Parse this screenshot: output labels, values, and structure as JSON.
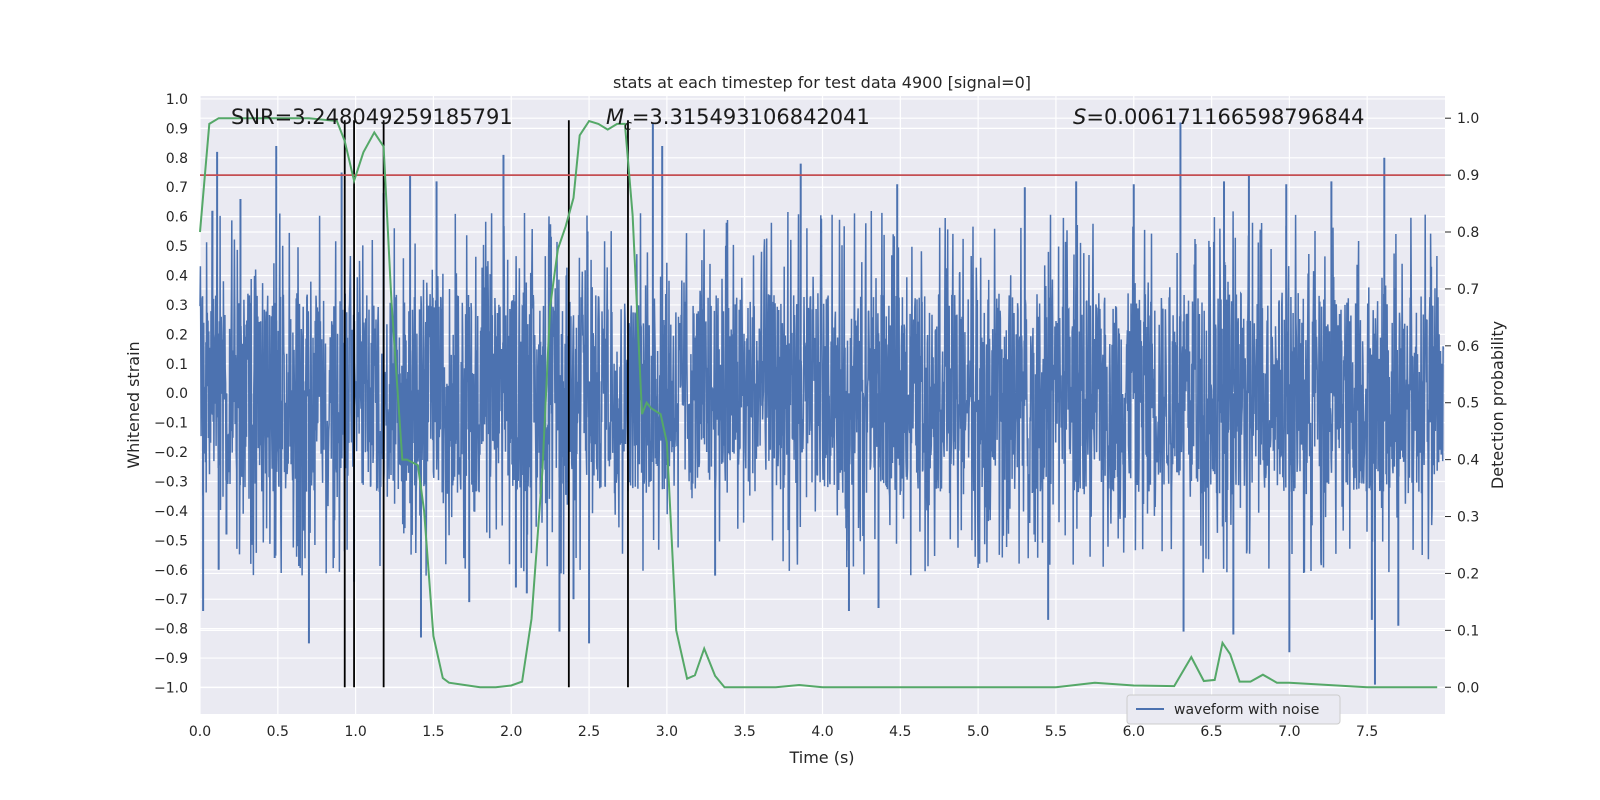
{
  "chart_data": {
    "type": "line",
    "title": "stats at each timestep for test data 4900 [signal=0]",
    "xlabel": "Time (s)",
    "ylabel": "Whitened strain",
    "y2label": "Detection probability",
    "xlim": [
      0,
      8
    ],
    "ylim": [
      -1.09,
      1.01
    ],
    "y2lim": [
      -0.047,
      1.039
    ],
    "grid": true,
    "xticks": [
      "0.0",
      "0.5",
      "1.0",
      "1.5",
      "2.0",
      "2.5",
      "3.0",
      "3.5",
      "4.0",
      "4.5",
      "5.0",
      "5.5",
      "6.0",
      "6.5",
      "7.0",
      "7.5"
    ],
    "yticks": [
      "1.0",
      "0.9",
      "0.8",
      "0.7",
      "0.6",
      "0.5",
      "0.4",
      "0.3",
      "0.2",
      "0.1",
      "0.0",
      "-0.1",
      "-0.2",
      "-0.3",
      "-0.4",
      "-0.5",
      "-0.6",
      "-0.7",
      "-0.8",
      "-0.9",
      "-1.0"
    ],
    "y2ticks": [
      "1.0",
      "0.9",
      "0.8",
      "0.7",
      "0.6",
      "0.5",
      "0.4",
      "0.3",
      "0.2",
      "0.1",
      "0.0"
    ],
    "annotations": {
      "snr": "SNR=3.248049259185791",
      "mc_symbol": "M",
      "mc_sub": "c",
      "mc_value": "=3.315493106842041",
      "s_symbol": "S",
      "s_value": "=0.006171166598796844"
    },
    "legend": {
      "placement": "lower-right",
      "entries": [
        "waveform with noise"
      ]
    },
    "threshold": {
      "axis": "right",
      "value": 0.9,
      "color": "#c44e52"
    },
    "vlines": [
      0.93,
      0.99,
      1.18,
      2.37,
      2.75
    ],
    "series": [
      {
        "name": "waveform with noise",
        "axis": "left",
        "color": "#4c72b0",
        "kind": "noise",
        "core_amplitude": 0.34,
        "spikes": [
          {
            "x": 0.02,
            "y": -0.74
          },
          {
            "x": 0.08,
            "y": 0.62
          },
          {
            "x": 0.11,
            "y": 0.82
          },
          {
            "x": 0.12,
            "y": -0.6
          },
          {
            "x": 0.17,
            "y": -0.48
          },
          {
            "x": 0.26,
            "y": 0.66
          },
          {
            "x": 0.33,
            "y": -0.47
          },
          {
            "x": 0.48,
            "y": -0.56
          },
          {
            "x": 0.49,
            "y": 0.84
          },
          {
            "x": 0.63,
            "y": -0.52
          },
          {
            "x": 0.7,
            "y": -0.85
          },
          {
            "x": 0.86,
            "y": -0.56
          },
          {
            "x": 0.91,
            "y": 0.75
          },
          {
            "x": 0.99,
            "y": -0.64
          },
          {
            "x": 1.18,
            "y": 0.68
          },
          {
            "x": 1.35,
            "y": 0.74
          },
          {
            "x": 1.42,
            "y": -0.83
          },
          {
            "x": 1.52,
            "y": 0.72
          },
          {
            "x": 1.73,
            "y": -0.71
          },
          {
            "x": 1.95,
            "y": 0.81
          },
          {
            "x": 2.03,
            "y": -0.66
          },
          {
            "x": 2.1,
            "y": -0.68
          },
          {
            "x": 2.31,
            "y": -0.81
          },
          {
            "x": 2.4,
            "y": -0.7
          },
          {
            "x": 2.5,
            "y": -0.85
          },
          {
            "x": 2.91,
            "y": 0.92
          },
          {
            "x": 2.97,
            "y": 0.84
          },
          {
            "x": 3.31,
            "y": -0.62
          },
          {
            "x": 3.86,
            "y": 0.78
          },
          {
            "x": 4.17,
            "y": -0.74
          },
          {
            "x": 4.36,
            "y": -0.73
          },
          {
            "x": 4.48,
            "y": 0.71
          },
          {
            "x": 5.3,
            "y": 0.7
          },
          {
            "x": 5.45,
            "y": -0.77
          },
          {
            "x": 5.63,
            "y": 0.72
          },
          {
            "x": 6.0,
            "y": 0.71
          },
          {
            "x": 6.3,
            "y": 0.92
          },
          {
            "x": 6.32,
            "y": -0.81
          },
          {
            "x": 6.58,
            "y": 0.72
          },
          {
            "x": 6.64,
            "y": -0.82
          },
          {
            "x": 6.74,
            "y": 0.74
          },
          {
            "x": 6.98,
            "y": 0.71
          },
          {
            "x": 7.0,
            "y": -0.88
          },
          {
            "x": 7.27,
            "y": 0.72
          },
          {
            "x": 7.53,
            "y": -0.77
          },
          {
            "x": 7.55,
            "y": -0.99
          },
          {
            "x": 7.61,
            "y": 0.8
          },
          {
            "x": 7.7,
            "y": -0.79
          }
        ]
      },
      {
        "name": "",
        "axis": "right",
        "color": "#55a868",
        "kind": "line",
        "x": [
          0.0,
          0.06,
          0.12,
          0.5,
          0.7,
          0.88,
          0.93,
          0.99,
          1.05,
          1.12,
          1.18,
          1.23,
          1.27,
          1.3,
          1.33,
          1.4,
          1.44,
          1.5,
          1.56,
          1.6,
          1.7,
          1.8,
          1.9,
          2.0,
          2.07,
          2.13,
          2.2,
          2.25,
          2.3,
          2.35,
          2.4,
          2.44,
          2.5,
          2.56,
          2.62,
          2.68,
          2.73,
          2.78,
          2.84,
          2.87,
          2.9,
          2.96,
          3.0,
          3.06,
          3.13,
          3.18,
          3.24,
          3.31,
          3.37,
          3.5,
          3.7,
          3.85,
          4.0,
          4.5,
          5.0,
          5.5,
          5.75,
          6.0,
          6.26,
          6.37,
          6.45,
          6.52,
          6.57,
          6.62,
          6.68,
          6.75,
          6.83,
          6.92,
          7.0,
          7.5,
          7.95
        ],
        "y": [
          0.8,
          0.99,
          1.0,
          1.0,
          1.0,
          0.995,
          0.96,
          0.89,
          0.94,
          0.975,
          0.95,
          0.68,
          0.52,
          0.4,
          0.4,
          0.39,
          0.31,
          0.09,
          0.016,
          0.008,
          0.004,
          0.0,
          0.0,
          0.003,
          0.01,
          0.12,
          0.38,
          0.67,
          0.77,
          0.81,
          0.86,
          0.97,
          0.995,
          0.99,
          0.98,
          0.99,
          0.99,
          0.83,
          0.48,
          0.5,
          0.49,
          0.48,
          0.43,
          0.1,
          0.015,
          0.021,
          0.068,
          0.02,
          0.0,
          0.0,
          0.0,
          0.004,
          0.0,
          0.0,
          0.0,
          0.0,
          0.008,
          0.003,
          0.002,
          0.053,
          0.011,
          0.013,
          0.078,
          0.058,
          0.01,
          0.01,
          0.022,
          0.008,
          0.008,
          0.0,
          0.0
        ]
      }
    ]
  }
}
